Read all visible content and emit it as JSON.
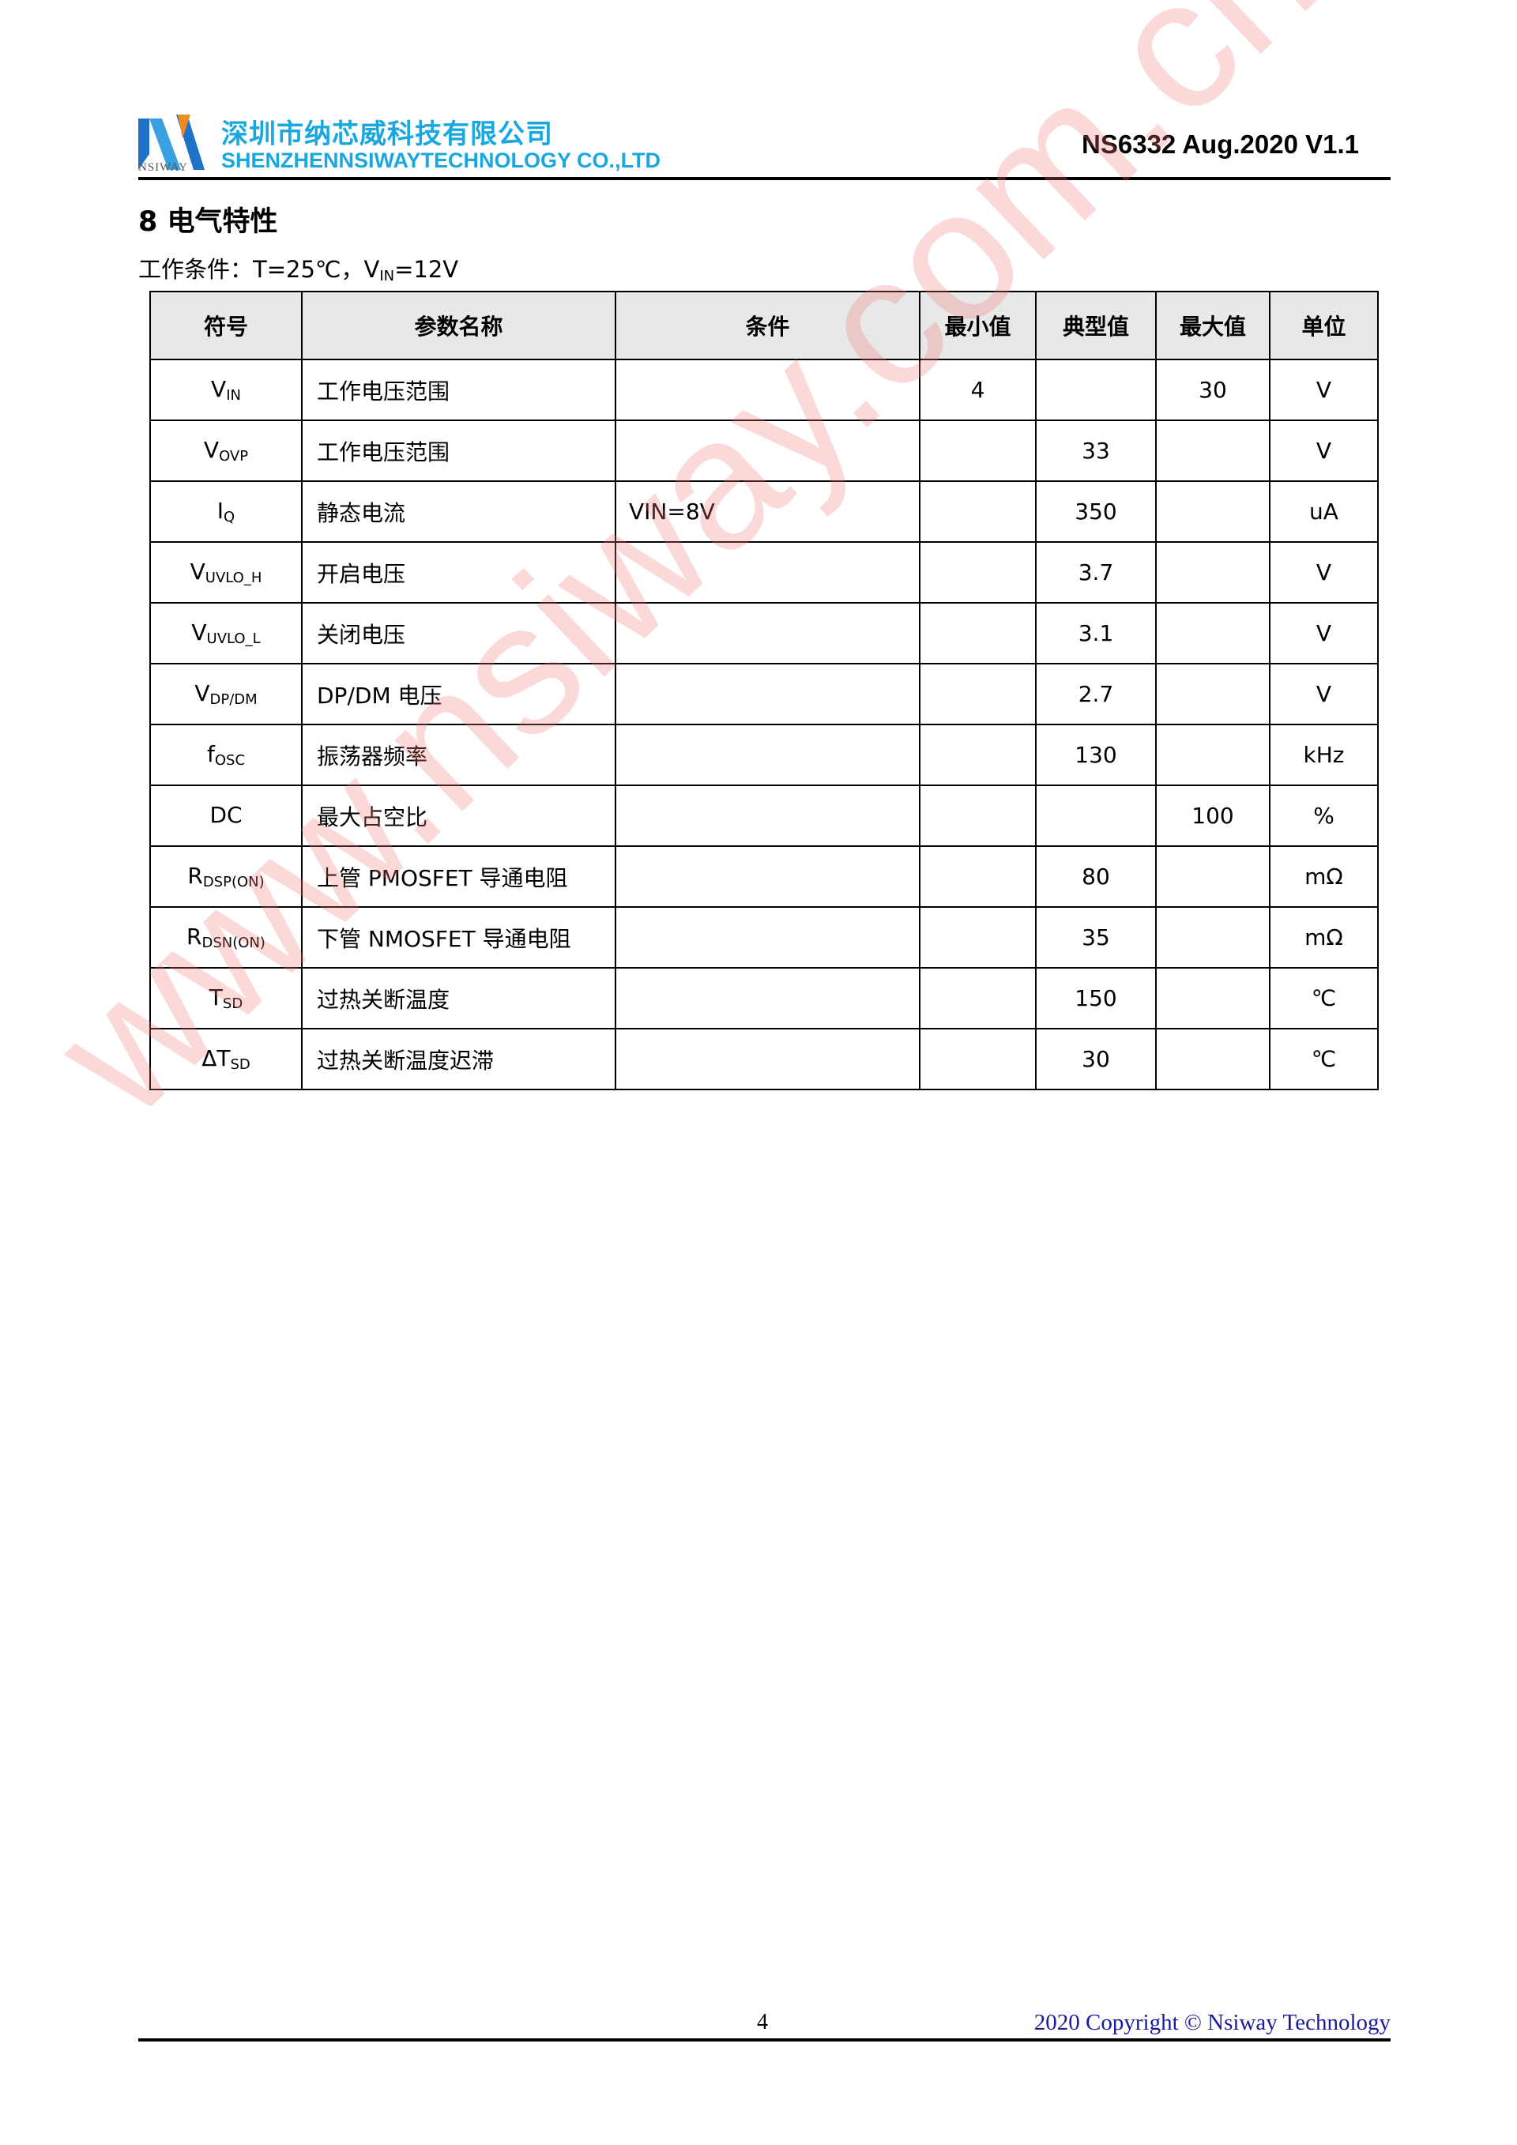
{
  "header": {
    "logo_text": "NSIWAY",
    "company_cn": "深圳市纳芯威科技有限公司",
    "company_en": "SHENZHENNSIWAYTECHNOLOGY CO.,LTD",
    "doc_id": "NS6332 Aug.2020 V1.1"
  },
  "section": {
    "title": "8 电气特性",
    "conditions_prefix": "工作条件：T=25℃，V",
    "conditions_sub": "IN",
    "conditions_suffix": "=12V"
  },
  "table": {
    "headers": [
      "符号",
      "参数名称",
      "条件",
      "最小值",
      "典型值",
      "最大值",
      "单位"
    ],
    "rows": [
      {
        "sym": "V",
        "sub": "IN",
        "name": "工作电压范围",
        "cond": "",
        "min": "4",
        "typ": "",
        "max": "30",
        "unit": "V"
      },
      {
        "sym": "V",
        "sub": "OVP",
        "name": "工作电压范围",
        "cond": "",
        "min": "",
        "typ": "33",
        "max": "",
        "unit": "V"
      },
      {
        "sym": "I",
        "sub": "Q",
        "name": "静态电流",
        "cond": "VIN=8V",
        "min": "",
        "typ": "350",
        "max": "",
        "unit": "uA"
      },
      {
        "sym": "V",
        "sub": "UVLO_H",
        "name": "开启电压",
        "cond": "",
        "min": "",
        "typ": "3.7",
        "max": "",
        "unit": "V"
      },
      {
        "sym": "V",
        "sub": "UVLO_L",
        "name": "关闭电压",
        "cond": "",
        "min": "",
        "typ": "3.1",
        "max": "",
        "unit": "V"
      },
      {
        "sym": "V",
        "sub": "DP/DM",
        "name": "DP/DM 电压",
        "cond": "",
        "min": "",
        "typ": "2.7",
        "max": "",
        "unit": "V"
      },
      {
        "sym": "f",
        "sub": "OSC",
        "name": "振荡器频率",
        "cond": "",
        "min": "",
        "typ": "130",
        "max": "",
        "unit": "kHz"
      },
      {
        "sym": "DC",
        "sub": "",
        "name": "最大占空比",
        "cond": "",
        "min": "",
        "typ": "",
        "max": "100",
        "unit": "%"
      },
      {
        "sym": "R",
        "sub": "DSP(ON)",
        "name": "上管 PMOSFET 导通电阻",
        "cond": "",
        "min": "",
        "typ": "80",
        "max": "",
        "unit": "mΩ"
      },
      {
        "sym": "R",
        "sub": "DSN(ON)",
        "name": "下管 NMOSFET 导通电阻",
        "cond": "",
        "min": "",
        "typ": "35",
        "max": "",
        "unit": "mΩ"
      },
      {
        "sym": "T",
        "sub": "SD",
        "name": "过热关断温度",
        "cond": "",
        "min": "",
        "typ": "150",
        "max": "",
        "unit": "℃"
      },
      {
        "sym": "ΔT",
        "sub": "SD",
        "name": "过热关断温度迟滞",
        "cond": "",
        "min": "",
        "typ": "30",
        "max": "",
        "unit": "℃"
      }
    ]
  },
  "watermark": "www.nsiway.com.cn",
  "footer": {
    "page": "4",
    "copyright": "2020 Copyright © Nsiway Technology"
  },
  "colors": {
    "brand": "#19a7e0",
    "watermark": "#f07878",
    "copyright": "#1a1aa0"
  }
}
